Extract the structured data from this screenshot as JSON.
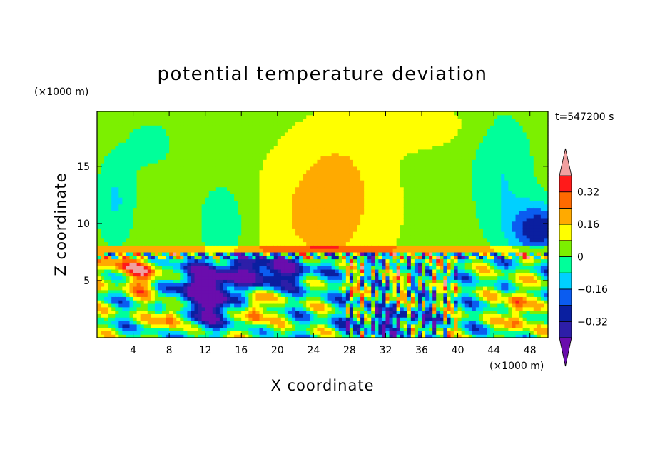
{
  "chart_data": {
    "type": "heatmap",
    "title": "potential temperature deviation",
    "time_label": "t=547200 s",
    "xlabel": "X coordinate",
    "ylabel": "Z coordinate",
    "x_units": "(×1000 m)",
    "y_units": "(×1000 m)",
    "xlim": [
      0,
      50
    ],
    "ylim": [
      0,
      19.8
    ],
    "x_ticks": [
      4,
      8,
      12,
      16,
      20,
      24,
      28,
      32,
      36,
      40,
      44,
      48
    ],
    "y_ticks": [
      5,
      10,
      15
    ],
    "colorbar": {
      "levels": [
        -0.4,
        -0.32,
        -0.24,
        -0.16,
        -0.08,
        0,
        0.08,
        0.16,
        0.24,
        0.32,
        0.4
      ],
      "labels": [
        "0.32",
        "0.16",
        "0",
        "−0.16",
        "−0.32"
      ],
      "label_values": [
        0.32,
        0.16,
        0,
        -0.16,
        -0.32
      ],
      "colors_low_to_high": [
        "#6a0dad",
        "#2d1ea8",
        "#0a1fa0",
        "#0b5cf0",
        "#00d0ff",
        "#00ff9a",
        "#7cf000",
        "#ffff00",
        "#ffaa00",
        "#ff6a00",
        "#ff1a1a",
        "#f0a0a0"
      ],
      "under_color": "#6a0dad",
      "over_color": "#f0a0a0"
    }
  }
}
